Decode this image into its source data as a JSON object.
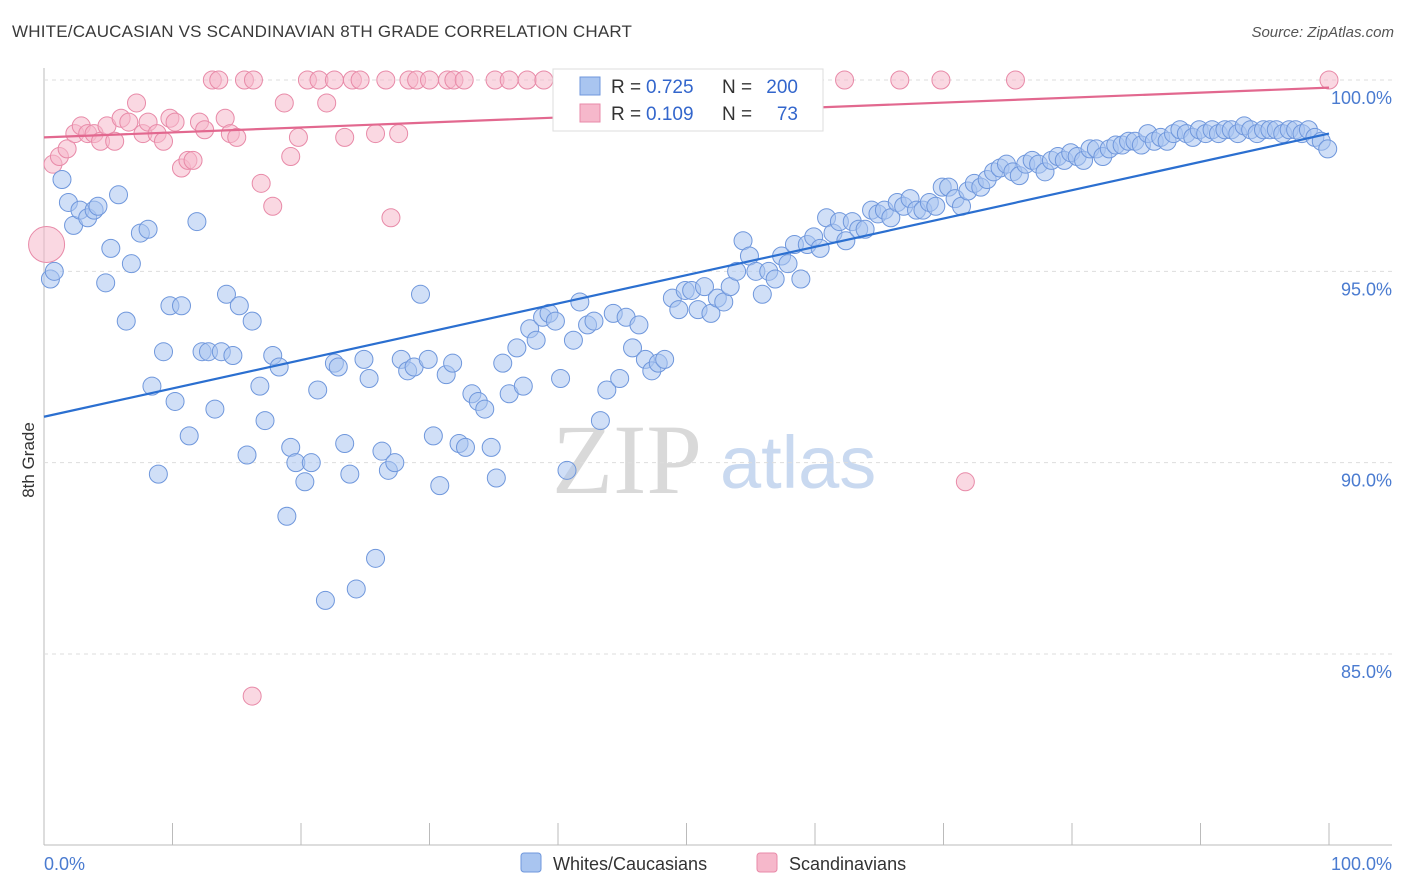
{
  "title": "WHITE/CAUCASIAN VS SCANDINAVIAN 8TH GRADE CORRELATION CHART",
  "source": "Source: ZipAtlas.com",
  "watermark": {
    "zip": "ZIP",
    "atlas": "atlas"
  },
  "colors": {
    "blue_fill": "#a9c5f0",
    "blue_stroke": "#6f97dc",
    "blue_line": "#2b6fd0",
    "pink_fill": "#f6b8cb",
    "pink_stroke": "#e88aa8",
    "pink_line": "#e2688f",
    "tick_text": "#4a7bd0",
    "grid": "#dddddd"
  },
  "legend": {
    "blue": {
      "r_label": "R =",
      "r_value": "0.725",
      "n_label": "N =",
      "n_value": "200"
    },
    "pink": {
      "r_label": "R =",
      "r_value": "0.109",
      "n_label": "N =",
      "n_value": "73"
    }
  },
  "chart_data": {
    "type": "scatter",
    "title": "WHITE/CAUCASIAN VS SCANDINAVIAN 8TH GRADE CORRELATION CHART",
    "xlabel": "",
    "ylabel": "8th Grade",
    "xlim": [
      0,
      100
    ],
    "ylim": [
      80,
      100.6
    ],
    "x_tick_labels": [
      "0.0%",
      "100.0%"
    ],
    "y_ticks": [
      85,
      90,
      95,
      100
    ],
    "y_tick_labels": [
      "85.0%",
      "90.0%",
      "95.0%",
      "100.0%"
    ],
    "grid": "horizontal dashed",
    "legend_position": "top-center",
    "series": [
      {
        "name": "Whites/Caucasians",
        "R": 0.725,
        "N": 200,
        "trend": {
          "x": [
            0,
            100
          ],
          "y": [
            91.2,
            98.6
          ]
        },
        "points": [
          [
            0.5,
            94.8
          ],
          [
            0.8,
            95.0
          ],
          [
            1.4,
            97.4
          ],
          [
            1.9,
            96.8
          ],
          [
            2.3,
            96.2
          ],
          [
            2.8,
            96.6
          ],
          [
            3.4,
            96.4
          ],
          [
            3.9,
            96.6
          ],
          [
            4.2,
            96.7
          ],
          [
            4.8,
            94.7
          ],
          [
            5.2,
            95.6
          ],
          [
            5.8,
            97.0
          ],
          [
            6.4,
            93.7
          ],
          [
            6.8,
            95.2
          ],
          [
            7.5,
            96.0
          ],
          [
            8.1,
            96.1
          ],
          [
            8.4,
            92.0
          ],
          [
            8.9,
            89.7
          ],
          [
            9.3,
            92.9
          ],
          [
            9.8,
            94.1
          ],
          [
            10.2,
            91.6
          ],
          [
            10.7,
            94.1
          ],
          [
            11.3,
            90.7
          ],
          [
            11.9,
            96.3
          ],
          [
            12.3,
            92.9
          ],
          [
            12.8,
            92.9
          ],
          [
            13.3,
            91.4
          ],
          [
            13.8,
            92.9
          ],
          [
            14.2,
            94.4
          ],
          [
            14.7,
            92.8
          ],
          [
            15.2,
            94.1
          ],
          [
            15.8,
            90.2
          ],
          [
            16.2,
            93.7
          ],
          [
            16.8,
            92.0
          ],
          [
            17.2,
            91.1
          ],
          [
            17.8,
            92.8
          ],
          [
            18.3,
            92.5
          ],
          [
            18.9,
            88.6
          ],
          [
            19.2,
            90.4
          ],
          [
            19.6,
            90.0
          ],
          [
            20.3,
            89.5
          ],
          [
            20.8,
            90.0
          ],
          [
            21.3,
            91.9
          ],
          [
            21.9,
            86.4
          ],
          [
            22.6,
            92.6
          ],
          [
            22.9,
            92.5
          ],
          [
            23.4,
            90.5
          ],
          [
            23.8,
            89.7
          ],
          [
            24.3,
            86.7
          ],
          [
            24.9,
            92.7
          ],
          [
            25.3,
            92.2
          ],
          [
            25.8,
            87.5
          ],
          [
            26.3,
            90.3
          ],
          [
            26.8,
            89.8
          ],
          [
            27.3,
            90.0
          ],
          [
            27.8,
            92.7
          ],
          [
            28.3,
            92.4
          ],
          [
            28.8,
            92.5
          ],
          [
            29.3,
            94.4
          ],
          [
            29.9,
            92.7
          ],
          [
            30.3,
            90.7
          ],
          [
            30.8,
            89.4
          ],
          [
            31.3,
            92.3
          ],
          [
            31.8,
            92.6
          ],
          [
            32.3,
            90.5
          ],
          [
            32.8,
            90.4
          ],
          [
            33.3,
            91.8
          ],
          [
            33.8,
            91.6
          ],
          [
            34.3,
            91.4
          ],
          [
            34.8,
            90.4
          ],
          [
            35.2,
            89.6
          ],
          [
            35.7,
            92.6
          ],
          [
            36.2,
            91.8
          ],
          [
            36.8,
            93.0
          ],
          [
            37.3,
            92.0
          ],
          [
            37.8,
            93.5
          ],
          [
            38.3,
            93.2
          ],
          [
            38.8,
            93.8
          ],
          [
            39.3,
            93.9
          ],
          [
            39.8,
            93.7
          ],
          [
            40.2,
            92.2
          ],
          [
            40.7,
            89.8
          ],
          [
            41.2,
            93.2
          ],
          [
            41.7,
            94.2
          ],
          [
            42.3,
            93.6
          ],
          [
            42.8,
            93.7
          ],
          [
            43.3,
            91.1
          ],
          [
            43.8,
            91.9
          ],
          [
            44.3,
            93.9
          ],
          [
            44.8,
            92.2
          ],
          [
            45.3,
            93.8
          ],
          [
            45.8,
            93.0
          ],
          [
            46.3,
            93.6
          ],
          [
            46.8,
            92.7
          ],
          [
            47.3,
            92.4
          ],
          [
            47.8,
            92.6
          ],
          [
            48.3,
            92.7
          ],
          [
            48.9,
            94.3
          ],
          [
            49.4,
            94.0
          ],
          [
            49.9,
            94.5
          ],
          [
            50.4,
            94.5
          ],
          [
            50.9,
            94.0
          ],
          [
            51.4,
            94.6
          ],
          [
            51.9,
            93.9
          ],
          [
            52.4,
            94.3
          ],
          [
            52.9,
            94.2
          ],
          [
            53.4,
            94.6
          ],
          [
            53.9,
            95.0
          ],
          [
            54.4,
            95.8
          ],
          [
            54.9,
            95.4
          ],
          [
            55.4,
            95.0
          ],
          [
            55.9,
            94.4
          ],
          [
            56.4,
            95.0
          ],
          [
            56.9,
            94.8
          ],
          [
            57.4,
            95.4
          ],
          [
            57.9,
            95.2
          ],
          [
            58.4,
            95.7
          ],
          [
            58.9,
            94.8
          ],
          [
            59.4,
            95.7
          ],
          [
            59.9,
            95.9
          ],
          [
            60.4,
            95.6
          ],
          [
            60.9,
            96.4
          ],
          [
            61.4,
            96.0
          ],
          [
            61.9,
            96.3
          ],
          [
            62.4,
            95.8
          ],
          [
            62.9,
            96.3
          ],
          [
            63.4,
            96.1
          ],
          [
            63.9,
            96.1
          ],
          [
            64.4,
            96.6
          ],
          [
            64.9,
            96.5
          ],
          [
            65.4,
            96.6
          ],
          [
            65.9,
            96.4
          ],
          [
            66.4,
            96.8
          ],
          [
            66.9,
            96.7
          ],
          [
            67.4,
            96.9
          ],
          [
            67.9,
            96.6
          ],
          [
            68.4,
            96.6
          ],
          [
            68.9,
            96.8
          ],
          [
            69.4,
            96.7
          ],
          [
            69.9,
            97.2
          ],
          [
            70.4,
            97.2
          ],
          [
            70.9,
            96.9
          ],
          [
            71.4,
            96.7
          ],
          [
            71.9,
            97.1
          ],
          [
            72.4,
            97.3
          ],
          [
            72.9,
            97.2
          ],
          [
            73.4,
            97.4
          ],
          [
            73.9,
            97.6
          ],
          [
            74.4,
            97.7
          ],
          [
            74.9,
            97.8
          ],
          [
            75.4,
            97.6
          ],
          [
            75.9,
            97.5
          ],
          [
            76.4,
            97.8
          ],
          [
            76.9,
            97.9
          ],
          [
            77.4,
            97.8
          ],
          [
            77.9,
            97.6
          ],
          [
            78.4,
            97.9
          ],
          [
            78.9,
            98.0
          ],
          [
            79.4,
            97.9
          ],
          [
            79.9,
            98.1
          ],
          [
            80.4,
            98.0
          ],
          [
            80.9,
            97.9
          ],
          [
            81.4,
            98.2
          ],
          [
            81.9,
            98.2
          ],
          [
            82.4,
            98.0
          ],
          [
            82.9,
            98.2
          ],
          [
            83.4,
            98.3
          ],
          [
            83.9,
            98.3
          ],
          [
            84.4,
            98.4
          ],
          [
            84.9,
            98.4
          ],
          [
            85.4,
            98.3
          ],
          [
            85.9,
            98.6
          ],
          [
            86.4,
            98.4
          ],
          [
            86.9,
            98.5
          ],
          [
            87.4,
            98.4
          ],
          [
            87.9,
            98.6
          ],
          [
            88.4,
            98.7
          ],
          [
            88.9,
            98.6
          ],
          [
            89.4,
            98.5
          ],
          [
            89.9,
            98.7
          ],
          [
            90.4,
            98.6
          ],
          [
            90.9,
            98.7
          ],
          [
            91.4,
            98.6
          ],
          [
            91.9,
            98.7
          ],
          [
            92.4,
            98.7
          ],
          [
            92.9,
            98.6
          ],
          [
            93.4,
            98.8
          ],
          [
            93.9,
            98.7
          ],
          [
            94.4,
            98.6
          ],
          [
            94.9,
            98.7
          ],
          [
            95.4,
            98.7
          ],
          [
            95.9,
            98.7
          ],
          [
            96.4,
            98.6
          ],
          [
            96.9,
            98.7
          ],
          [
            97.4,
            98.7
          ],
          [
            97.9,
            98.6
          ],
          [
            98.4,
            98.7
          ],
          [
            98.9,
            98.5
          ],
          [
            99.4,
            98.4
          ],
          [
            99.9,
            98.2
          ]
        ]
      },
      {
        "name": "Scandinavians",
        "R": 0.109,
        "N": 73,
        "trend": {
          "x": [
            0,
            100
          ],
          "y": [
            98.5,
            99.8
          ]
        },
        "points": [
          [
            0.2,
            95.7
          ],
          [
            0.7,
            97.8
          ],
          [
            1.2,
            98.0
          ],
          [
            1.8,
            98.2
          ],
          [
            2.4,
            98.6
          ],
          [
            2.9,
            98.8
          ],
          [
            3.4,
            98.6
          ],
          [
            3.9,
            98.6
          ],
          [
            4.4,
            98.4
          ],
          [
            4.9,
            98.8
          ],
          [
            5.5,
            98.4
          ],
          [
            6.0,
            99.0
          ],
          [
            6.6,
            98.9
          ],
          [
            7.2,
            99.4
          ],
          [
            7.7,
            98.6
          ],
          [
            8.1,
            98.9
          ],
          [
            8.8,
            98.6
          ],
          [
            9.3,
            98.4
          ],
          [
            9.8,
            99.0
          ],
          [
            10.2,
            98.9
          ],
          [
            10.7,
            97.7
          ],
          [
            11.2,
            97.9
          ],
          [
            11.6,
            97.9
          ],
          [
            12.1,
            98.9
          ],
          [
            12.5,
            98.7
          ],
          [
            13.1,
            100.0
          ],
          [
            13.6,
            100.0
          ],
          [
            14.1,
            99.0
          ],
          [
            14.5,
            98.6
          ],
          [
            15.0,
            98.5
          ],
          [
            15.6,
            100.0
          ],
          [
            16.3,
            100.0
          ],
          [
            16.9,
            97.3
          ],
          [
            17.8,
            96.7
          ],
          [
            18.7,
            99.4
          ],
          [
            19.2,
            98.0
          ],
          [
            19.8,
            98.5
          ],
          [
            20.5,
            100.0
          ],
          [
            21.4,
            100.0
          ],
          [
            22.0,
            99.4
          ],
          [
            22.6,
            100.0
          ],
          [
            23.4,
            98.5
          ],
          [
            24.0,
            100.0
          ],
          [
            24.6,
            100.0
          ],
          [
            25.8,
            98.6
          ],
          [
            26.6,
            100.0
          ],
          [
            27.0,
            96.4
          ],
          [
            27.6,
            98.6
          ],
          [
            28.4,
            100.0
          ],
          [
            29.0,
            100.0
          ],
          [
            30.0,
            100.0
          ],
          [
            31.4,
            100.0
          ],
          [
            31.9,
            100.0
          ],
          [
            32.7,
            100.0
          ],
          [
            35.1,
            100.0
          ],
          [
            36.2,
            100.0
          ],
          [
            37.6,
            100.0
          ],
          [
            38.9,
            100.0
          ],
          [
            40.3,
            100.0
          ],
          [
            42.7,
            100.0
          ],
          [
            43.9,
            100.0
          ],
          [
            47.1,
            100.0
          ],
          [
            49.4,
            100.0
          ],
          [
            52.0,
            100.0
          ],
          [
            54.3,
            100.0
          ],
          [
            57.0,
            100.0
          ],
          [
            62.3,
            100.0
          ],
          [
            66.6,
            100.0
          ],
          [
            69.8,
            100.0
          ],
          [
            75.6,
            100.0
          ],
          [
            16.2,
            83.9
          ],
          [
            71.7,
            89.5
          ],
          [
            100.0,
            100.0
          ]
        ]
      }
    ]
  },
  "bottom_legend": [
    "Whites/Caucasians",
    "Scandinavians"
  ]
}
